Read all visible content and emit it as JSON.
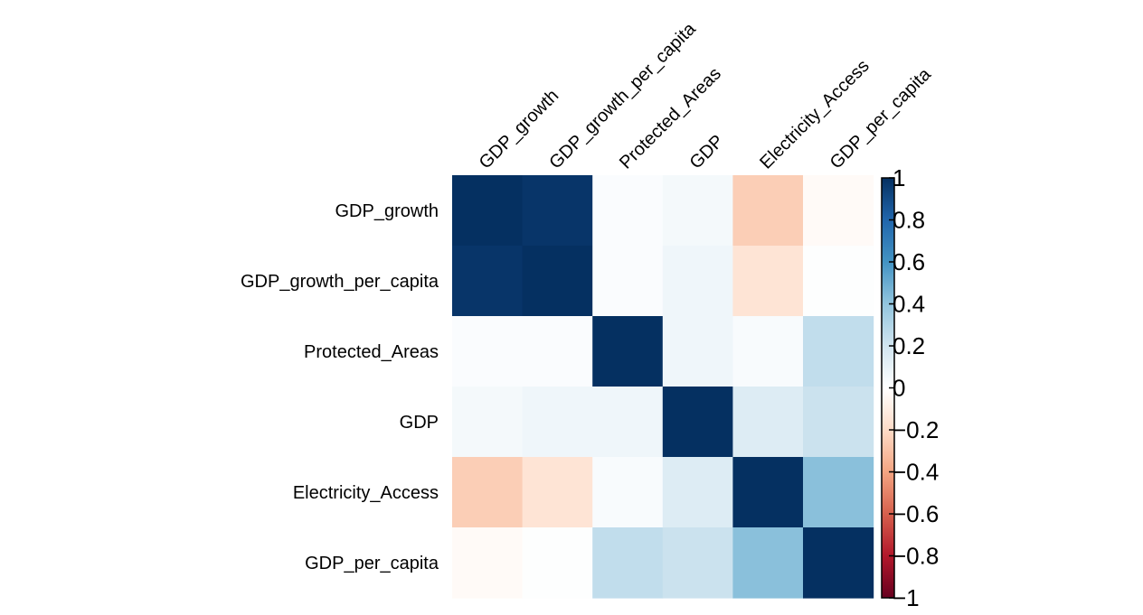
{
  "chart_data": {
    "type": "heatmap",
    "title": "",
    "variables": [
      "GDP_growth",
      "GDP_growth_per_capita",
      "Protected_Areas",
      "GDP",
      "Electricity_Access",
      "GDP_per_capita"
    ],
    "matrix": [
      [
        1.0,
        0.98,
        0.02,
        0.05,
        -0.25,
        -0.03
      ],
      [
        0.98,
        1.0,
        0.02,
        0.07,
        -0.15,
        0.01
      ],
      [
        0.02,
        0.02,
        1.0,
        0.07,
        0.03,
        0.25
      ],
      [
        0.05,
        0.07,
        0.07,
        1.0,
        0.15,
        0.22
      ],
      [
        -0.25,
        -0.15,
        0.03,
        0.15,
        1.0,
        0.42
      ],
      [
        -0.03,
        0.01,
        0.25,
        0.22,
        0.42,
        1.0
      ]
    ],
    "colorbar": {
      "range": [
        -1,
        1
      ],
      "ticks": [
        "1",
        "0.8",
        "0.6",
        "0.4",
        "0.2",
        "0",
        "−0.2",
        "−0.4",
        "−0.6",
        "−0.8",
        "−1"
      ],
      "colors": {
        "neg1": "#67001f",
        "neg08": "#b2182b",
        "neg06": "#d6604d",
        "neg04": "#f4a582",
        "neg02": "#fddbc7",
        "zero": "#ffffff",
        "pos02": "#d1e5f0",
        "pos04": "#92c5de",
        "pos06": "#4393c3",
        "pos08": "#2166ac",
        "pos1": "#053061"
      }
    }
  }
}
